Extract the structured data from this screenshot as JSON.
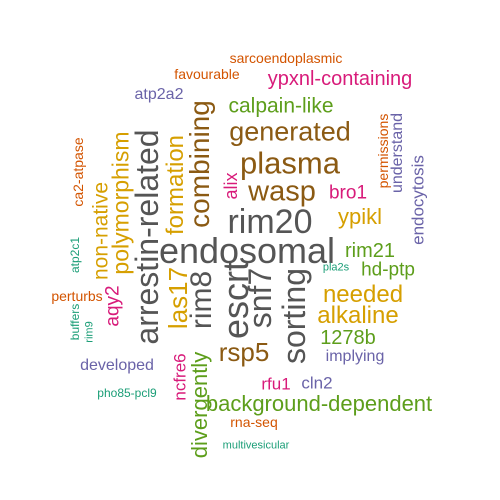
{
  "colors": {
    "gray": "#555555",
    "brown": "#8b5a13",
    "orange": "#d69f00",
    "green": "#5d9e1b",
    "purple": "#6a63a8",
    "pink": "#d81b7a",
    "rust": "#d35400",
    "teal": "#1b9e77"
  },
  "words": {
    "sarcoendoplasmic": "sarcoendoplasmic",
    "favourable": "favourable",
    "ypxnl_containing": "ypxnl-containing",
    "atp2a2": "atp2a2",
    "calpain_like": "calpain-like",
    "generated": "generated",
    "plasma": "plasma",
    "wasp": "wasp",
    "bro1": "bro1",
    "ypikl": "ypikl",
    "rim20": "rim20",
    "endosomal": "endosomal",
    "rim21": "rim21",
    "hd_ptp": "hd-ptp",
    "pla2s": "pla2s",
    "needed": "needed",
    "alkaline": "alkaline",
    "b1278": "1278b",
    "rsp5": "rsp5",
    "implying": "implying",
    "developed": "developed",
    "rfu1": "rfu1",
    "cln2": "cln2",
    "background_dependent": "background-dependent",
    "pho85_pcl9": "pho85-pcl9",
    "rna_seq": "rna-seq",
    "multivesicular": "multivesicular",
    "perturbs": "perturbs",
    "buffers": "buffers",
    "rim9": "rim9",
    "atp2c1": "atp2c1",
    "ca2_atpase": "ca2-atpase",
    "aqy2": "aqy2",
    "non_native": "non-native",
    "polymorphism": "polymorphism",
    "arrestin_related": "arrestin-related",
    "formation": "formation",
    "las17": "las17",
    "rim8": "rim8",
    "combining": "combining",
    "escrt": "escrt",
    "snf7": "snf7",
    "sorting": "sorting",
    "alix": "alix",
    "permissions": "permissions",
    "understand": "understand",
    "endocytosis": "endocytosis",
    "ncfre6": "ncfre6",
    "divergently": "divergently"
  }
}
